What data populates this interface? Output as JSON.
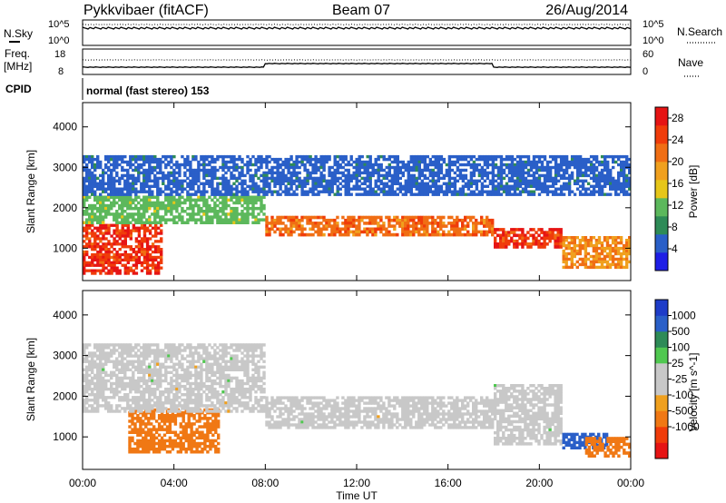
{
  "header": {
    "station": "Pykkvibaer (fitACF)",
    "beam": "Beam 07",
    "date": "26/Aug/2014"
  },
  "status_panels": {
    "nsky": {
      "label": "N.Sky",
      "ticks": [
        "10^5",
        "10^0"
      ]
    },
    "nsearch": {
      "label": "N.Search",
      "ticks": [
        "10^5",
        "10^0"
      ]
    },
    "freq": {
      "label_line1": "Freq.",
      "label_line2": "[MHz]",
      "ticks": [
        "18",
        "8"
      ]
    },
    "nave": {
      "label": "Nave",
      "ticks": [
        "60",
        "0"
      ]
    },
    "cpid": {
      "label": "CPID",
      "value": "normal (fast stereo) 153"
    }
  },
  "colors": {
    "power": [
      "#1e1ee6",
      "#2a5fc8",
      "#2e8b57",
      "#5cb85c",
      "#e6c619",
      "#f0a01e",
      "#f06e14",
      "#f03c0a",
      "#e61414"
    ],
    "velocity": [
      "#e61414",
      "#f03c0a",
      "#f07814",
      "#f0a01e",
      "#c8c8c8",
      "#c8c8c8",
      "#50c850",
      "#2e8b57",
      "#2a5fc8",
      "#1e3cc8"
    ]
  },
  "chart_data": [
    {
      "type": "heatmap",
      "title": "",
      "xlabel": "",
      "ylabel": "Slant Range [km]",
      "xlim_hours": [
        0,
        24
      ],
      "ylim": [
        200,
        4600
      ],
      "yticks": [
        "1000",
        "2000",
        "3000",
        "4000"
      ],
      "colorbar": {
        "label": "Power [dB]",
        "ticks": [
          "4",
          "8",
          "12",
          "16",
          "20",
          "24",
          "28"
        ],
        "range": [
          0,
          30
        ]
      },
      "series": [
        {
          "name": "Power [dB]",
          "bands": [
            {
              "t": [
                0,
                3.5
              ],
              "r": [
                350,
                1600
              ],
              "v": 26
            },
            {
              "t": [
                0,
                8
              ],
              "r": [
                1600,
                2300
              ],
              "v": 12
            },
            {
              "t": [
                8,
                18
              ],
              "r": [
                1300,
                1800
              ],
              "v": 22
            },
            {
              "t": [
                18,
                21
              ],
              "r": [
                1000,
                1500
              ],
              "v": 26
            },
            {
              "t": [
                21,
                24
              ],
              "r": [
                500,
                1300
              ],
              "v": 20
            },
            {
              "t": [
                0,
                24
              ],
              "r": [
                2300,
                3300
              ],
              "v": 6
            }
          ]
        }
      ]
    },
    {
      "type": "heatmap",
      "title": "",
      "xlabel": "Time UT",
      "ylabel": "Slant Range [km]",
      "xlim_hours": [
        0,
        24
      ],
      "ylim": [
        200,
        4600
      ],
      "xticks": [
        "00:00",
        "04:00",
        "08:00",
        "12:00",
        "16:00",
        "20:00",
        "00:00"
      ],
      "yticks": [
        "1000",
        "2000",
        "3000",
        "4000"
      ],
      "colorbar": {
        "label": "Velocity [m s^-1]",
        "ticks": [
          "1000",
          "500",
          "100",
          "25",
          "-25",
          "-100",
          "-500",
          "-1000"
        ],
        "range": [
          -1000,
          1000
        ]
      },
      "series": [
        {
          "name": "Velocity [m s^-1]",
          "bands": [
            {
              "t": [
                2,
                6
              ],
              "r": [
                600,
                1700
              ],
              "v": -300
            },
            {
              "t": [
                0,
                8
              ],
              "r": [
                1600,
                3300
              ],
              "v": 0
            },
            {
              "t": [
                8,
                18
              ],
              "r": [
                1200,
                2000
              ],
              "v": 0
            },
            {
              "t": [
                18,
                21
              ],
              "r": [
                800,
                2300
              ],
              "v": 0
            },
            {
              "t": [
                21,
                23
              ],
              "r": [
                700,
                1100
              ],
              "v": 600
            },
            {
              "t": [
                22,
                24
              ],
              "r": [
                500,
                1000
              ],
              "v": -400
            }
          ]
        }
      ]
    }
  ]
}
